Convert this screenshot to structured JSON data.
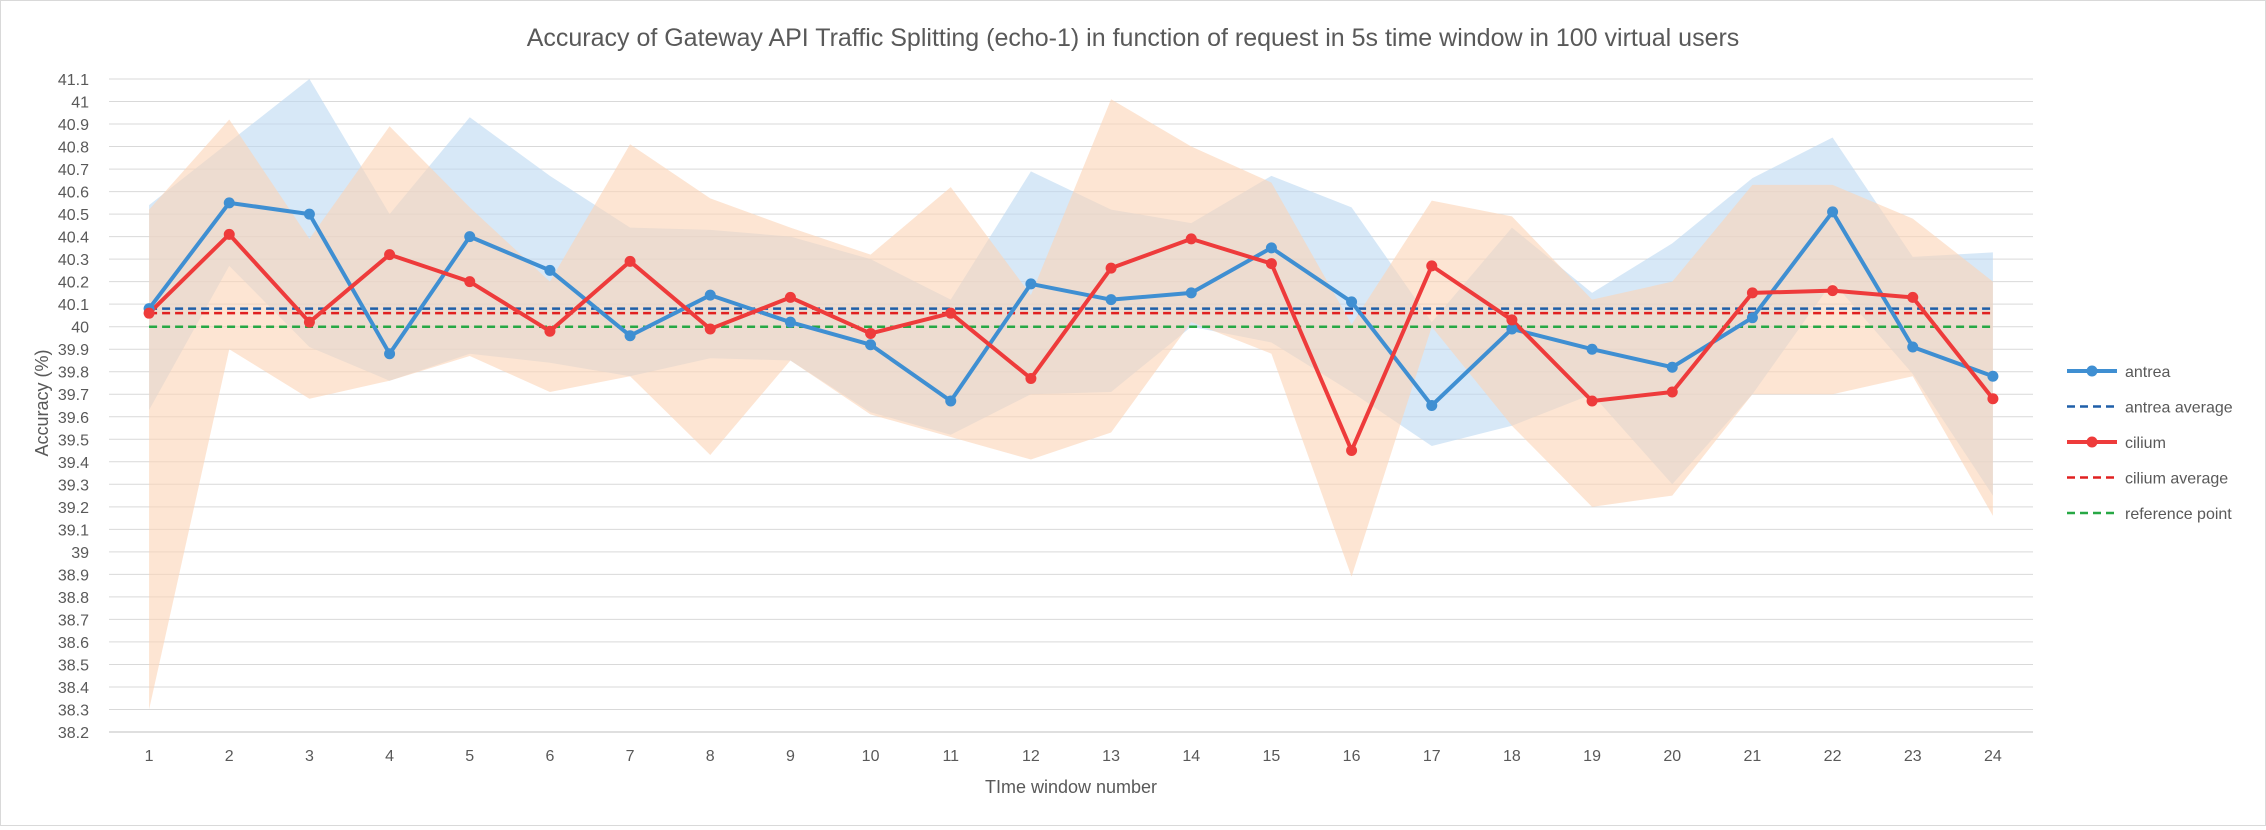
{
  "chart_data": {
    "type": "line",
    "title": "Accuracy of Gateway API Traffic Splitting (echo-1) in function of request in 5s time window in 100 virtual users",
    "xlabel": "TIme window number",
    "ylabel": "Accuracy (%)",
    "ylim": [
      38.2,
      41.1
    ],
    "ytick_step": 0.1,
    "grid": "horizontal",
    "legend_position": "right",
    "categories": [
      1,
      2,
      3,
      4,
      5,
      6,
      7,
      8,
      9,
      10,
      11,
      12,
      13,
      14,
      15,
      16,
      17,
      18,
      19,
      20,
      21,
      22,
      23,
      24
    ],
    "series": [
      {
        "name": "antrea",
        "color": "#3f8fd2",
        "values": [
          40.08,
          40.55,
          40.5,
          39.88,
          40.4,
          40.25,
          39.96,
          40.14,
          40.02,
          39.92,
          39.67,
          40.19,
          40.12,
          40.15,
          40.35,
          40.11,
          39.65,
          39.99,
          39.9,
          39.82,
          40.04,
          40.51,
          39.91,
          39.78
        ],
        "band_upper": [
          40.54,
          40.82,
          41.1,
          40.5,
          40.93,
          40.67,
          40.44,
          40.43,
          40.4,
          40.3,
          40.12,
          40.69,
          40.52,
          40.46,
          40.67,
          40.53,
          40.02,
          40.44,
          40.15,
          40.37,
          40.66,
          40.84,
          40.31,
          40.33
        ],
        "band_lower": [
          39.63,
          40.27,
          39.91,
          39.76,
          39.88,
          39.84,
          39.78,
          39.86,
          39.85,
          39.62,
          39.52,
          39.7,
          39.71,
          40.0,
          39.93,
          39.71,
          39.47,
          39.56,
          39.7,
          39.3,
          39.7,
          40.2,
          39.79,
          39.25
        ]
      },
      {
        "name": "cilium",
        "color": "#ee3b3b",
        "values": [
          40.06,
          40.41,
          40.02,
          40.32,
          40.2,
          39.98,
          40.29,
          39.99,
          40.13,
          39.97,
          40.06,
          39.77,
          40.26,
          40.39,
          40.28,
          39.45,
          40.27,
          40.03,
          39.67,
          39.71,
          40.15,
          40.16,
          40.13,
          39.68
        ],
        "band_upper": [
          40.52,
          40.92,
          40.39,
          40.89,
          40.53,
          40.2,
          40.81,
          40.57,
          40.44,
          40.32,
          40.62,
          40.14,
          41.01,
          40.8,
          40.64,
          40.01,
          40.56,
          40.49,
          40.12,
          40.2,
          40.63,
          40.63,
          40.48,
          40.2
        ],
        "band_lower": [
          38.3,
          39.9,
          39.68,
          39.76,
          39.87,
          39.71,
          39.78,
          39.43,
          39.85,
          39.61,
          39.51,
          39.41,
          39.53,
          40.02,
          39.88,
          38.89,
          40.0,
          39.56,
          39.2,
          39.25,
          39.7,
          39.7,
          39.78,
          39.16
        ]
      }
    ],
    "reference_lines": [
      {
        "name": "antrea average",
        "value": 40.08,
        "color": "#1f5fa8"
      },
      {
        "name": "cilium average",
        "value": 40.06,
        "color": "#e02020"
      },
      {
        "name": "reference point",
        "value": 40.0,
        "color": "#27a845"
      }
    ],
    "band_colors": {
      "antrea": "#bcd8f2",
      "cilium": "#fbd3b5"
    },
    "legend": [
      "antrea",
      "antrea average",
      "cilium",
      "cilium average",
      "reference point"
    ]
  }
}
